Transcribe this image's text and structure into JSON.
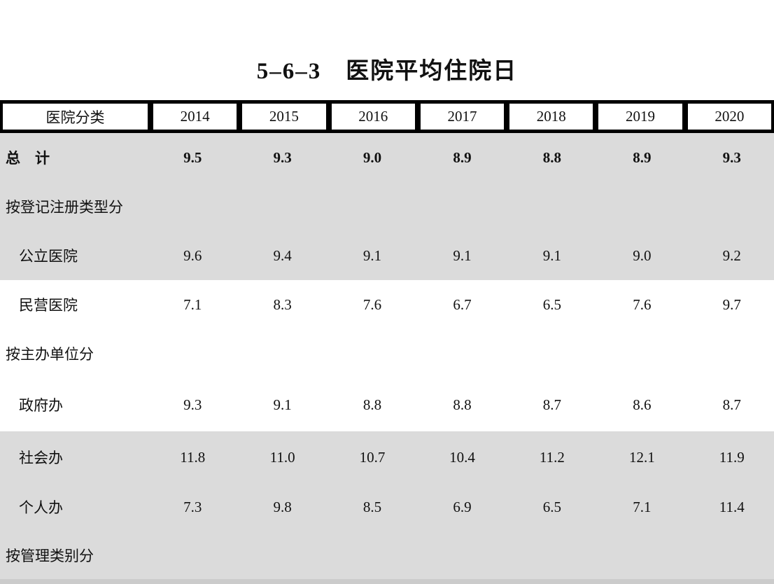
{
  "page": {
    "title": "5–6–3　医院平均住院日"
  },
  "table": {
    "header": {
      "category_label": "医院分类",
      "years": [
        "2014",
        "2015",
        "2016",
        "2017",
        "2018",
        "2019",
        "2020"
      ]
    },
    "rows": [
      {
        "label": "总　计",
        "indent": false,
        "bold": true,
        "shaded": true,
        "values": [
          "9.5",
          "9.3",
          "9.0",
          "8.9",
          "8.8",
          "8.9",
          "9.3"
        ]
      },
      {
        "label": "按登记注册类型分",
        "indent": false,
        "bold": false,
        "shaded": true,
        "values": []
      },
      {
        "label": "公立医院",
        "indent": true,
        "bold": false,
        "shaded": true,
        "values": [
          "9.6",
          "9.4",
          "9.1",
          "9.1",
          "9.1",
          "9.0",
          "9.2"
        ]
      },
      {
        "label": "民营医院",
        "indent": true,
        "bold": false,
        "shaded": false,
        "values": [
          "7.1",
          "8.3",
          "7.6",
          "6.7",
          "6.5",
          "7.6",
          "9.7"
        ]
      },
      {
        "label": "按主办单位分",
        "indent": false,
        "bold": false,
        "shaded": false,
        "values": []
      },
      {
        "label": "政府办",
        "indent": true,
        "bold": false,
        "shaded": false,
        "values": [
          "9.3",
          "9.1",
          "8.8",
          "8.8",
          "8.7",
          "8.6",
          "8.7"
        ]
      },
      {
        "label": "社会办",
        "indent": true,
        "bold": false,
        "shaded": true,
        "values": [
          "11.8",
          "11.0",
          "10.7",
          "10.4",
          "11.2",
          "12.1",
          "11.9"
        ]
      },
      {
        "label": "个人办",
        "indent": true,
        "bold": false,
        "shaded": true,
        "values": [
          "7.3",
          "9.8",
          "8.5",
          "6.9",
          "6.5",
          "7.1",
          "11.4"
        ]
      },
      {
        "label": "按管理类别分",
        "indent": false,
        "bold": false,
        "shaded": true,
        "values": []
      }
    ]
  },
  "colors": {
    "band_gray": "#dbdbdb",
    "bottom_strip_gray": "#cbcbcb",
    "header_border": "#000000",
    "text": "#111111"
  }
}
